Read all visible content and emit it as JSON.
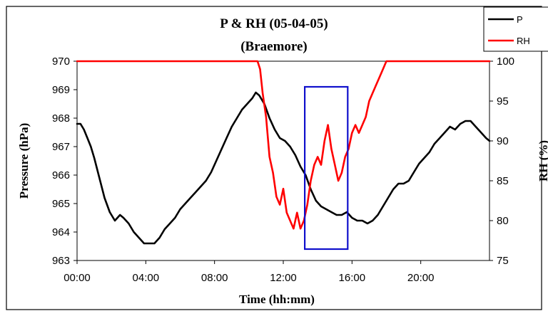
{
  "chart_data": {
    "type": "line",
    "title": "P & RH (05-04-05)",
    "subtitle": "(Braemore)",
    "xlabel": "Time (hh:mm)",
    "ylabel": "Pressure (hPa)",
    "y2label": "RH (%)",
    "xlim": [
      0,
      24
    ],
    "ylim": [
      963,
      970
    ],
    "y2lim": [
      75,
      100
    ],
    "x_ticks": [
      "00:00",
      "04:00",
      "08:00",
      "12:00",
      "16:00",
      "20:00"
    ],
    "y_ticks": [
      "970",
      "969",
      "968",
      "967",
      "966",
      "965",
      "964",
      "963"
    ],
    "y2_ticks": [
      "100",
      "95",
      "90",
      "85",
      "80",
      "75"
    ],
    "grid": false,
    "legend_position": "top-right",
    "highlight_box": {
      "x": [
        13.25,
        15.75
      ],
      "y": [
        963.4,
        969.1
      ],
      "color": "#1010cc"
    },
    "series": [
      {
        "name": "P",
        "axis": "left",
        "color": "#000000",
        "x": [
          0,
          0.2,
          0.4,
          0.6,
          0.8,
          1.0,
          1.3,
          1.6,
          1.9,
          2.2,
          2.5,
          2.7,
          3.0,
          3.3,
          3.6,
          3.9,
          4.2,
          4.5,
          4.8,
          5.1,
          5.4,
          5.7,
          6.0,
          6.3,
          6.6,
          6.9,
          7.2,
          7.5,
          7.8,
          8.1,
          8.4,
          8.7,
          9.0,
          9.3,
          9.6,
          9.9,
          10.2,
          10.4,
          10.6,
          10.9,
          11.2,
          11.5,
          11.8,
          12.1,
          12.4,
          12.7,
          13.0,
          13.3,
          13.6,
          13.9,
          14.2,
          14.5,
          14.8,
          15.1,
          15.4,
          15.7,
          16.0,
          16.3,
          16.6,
          16.9,
          17.2,
          17.5,
          17.8,
          18.1,
          18.4,
          18.7,
          19.0,
          19.3,
          19.6,
          19.9,
          20.2,
          20.5,
          20.8,
          21.1,
          21.4,
          21.7,
          22.0,
          22.3,
          22.6,
          22.9,
          23.2,
          23.5,
          23.8,
          24.0
        ],
        "values": [
          967.8,
          967.8,
          967.6,
          967.3,
          967.0,
          966.6,
          965.9,
          965.2,
          964.7,
          964.4,
          964.6,
          964.5,
          964.3,
          964.0,
          963.8,
          963.6,
          963.6,
          963.6,
          963.8,
          964.1,
          964.3,
          964.5,
          964.8,
          965.0,
          965.2,
          965.4,
          965.6,
          965.8,
          966.1,
          966.5,
          966.9,
          967.3,
          967.7,
          968.0,
          968.3,
          968.5,
          968.7,
          968.9,
          968.8,
          968.5,
          968.0,
          967.6,
          967.3,
          967.2,
          967.0,
          966.7,
          966.3,
          966.0,
          965.5,
          965.1,
          964.9,
          964.8,
          964.7,
          964.6,
          964.6,
          964.7,
          964.5,
          964.4,
          964.4,
          964.3,
          964.4,
          964.6,
          964.9,
          965.2,
          965.5,
          965.7,
          965.7,
          965.8,
          966.1,
          966.4,
          966.6,
          966.8,
          967.1,
          967.3,
          967.5,
          967.7,
          967.6,
          967.8,
          967.9,
          967.9,
          967.7,
          967.5,
          967.3,
          967.2
        ]
      },
      {
        "name": "RH",
        "axis": "right",
        "color": "#ff0000",
        "x": [
          0,
          1,
          2,
          3,
          4,
          5,
          6,
          7,
          8,
          9,
          10,
          10.5,
          10.65,
          10.8,
          11.0,
          11.2,
          11.4,
          11.6,
          11.8,
          12.0,
          12.2,
          12.4,
          12.6,
          12.8,
          13.0,
          13.2,
          13.4,
          13.6,
          13.8,
          14.0,
          14.2,
          14.4,
          14.6,
          14.8,
          15.0,
          15.2,
          15.4,
          15.6,
          15.8,
          16.0,
          16.2,
          16.4,
          16.6,
          16.8,
          17.0,
          17.2,
          17.4,
          17.6,
          17.8,
          18.0,
          18.2,
          18.5,
          18.8,
          19.1,
          19.4,
          19.7,
          20.0,
          21,
          22,
          23,
          24
        ],
        "values": [
          100,
          100,
          100,
          100,
          100,
          100,
          100,
          100,
          100,
          100,
          100,
          100,
          99,
          96,
          93,
          88,
          86,
          83,
          82,
          84,
          81,
          80,
          79,
          81,
          79,
          80,
          82,
          85,
          87,
          88,
          87,
          90,
          92,
          89,
          87,
          85,
          86,
          88,
          89,
          91,
          92,
          91,
          92,
          93,
          95,
          96,
          97,
          98,
          99,
          100,
          100,
          100,
          100,
          100,
          100,
          100,
          100,
          100,
          100,
          100,
          100
        ]
      }
    ]
  }
}
